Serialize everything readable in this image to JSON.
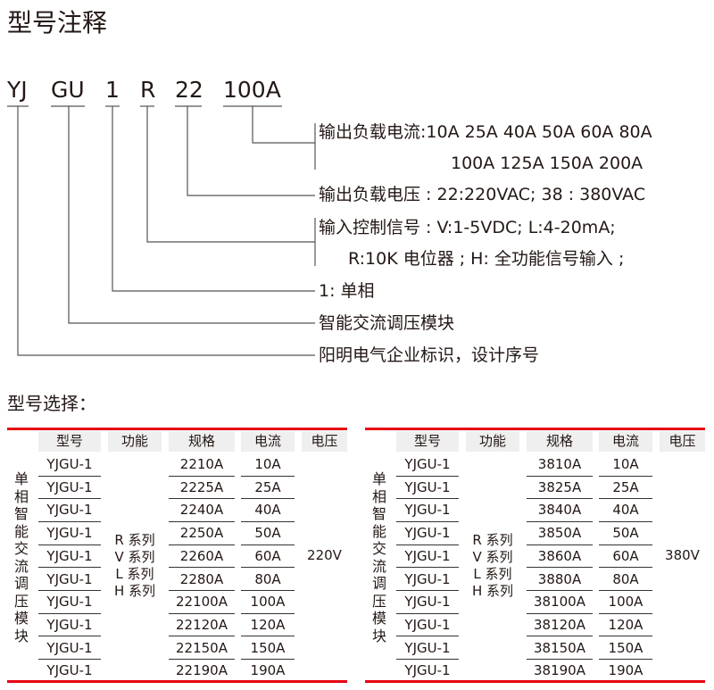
{
  "title": "型号注释",
  "codes": [
    "YJ",
    "GU",
    "1",
    "R",
    "22",
    "100A"
  ],
  "descriptions": {
    "current_line1": "输出负载电流:10A 25A 40A 50A 60A 80A",
    "current_line2": "100A 125A 150A 200A",
    "voltage": "输出负载电压 : 22:220VAC; 38 : 380VAC",
    "control_line1": "输入控制信号 : V:1-5VDC; L:4-20mA;",
    "control_line2": "R:10K 电位器 ; H: 全功能信号输入 ;",
    "phase": "1: 单相",
    "module": "智能交流调压模块",
    "brand": "阳明电气企业标识，设计序号"
  },
  "selection_title": "型号选择：",
  "accent_color": "#e60012",
  "tables": [
    {
      "headers": [
        "型号",
        "功能",
        "规格",
        "电流",
        "电压"
      ],
      "side_label": "单相智能交流调压模块",
      "functions": [
        "R 系列",
        "V 系列",
        "L 系列",
        "H 系列"
      ],
      "voltage": "220V",
      "rows": [
        [
          "YJGU-1",
          "2210A",
          "10A"
        ],
        [
          "YJGU-1",
          "2225A",
          "25A"
        ],
        [
          "YJGU-1",
          "2240A",
          "40A"
        ],
        [
          "YJGU-1",
          "2250A",
          "50A"
        ],
        [
          "YJGU-1",
          "2260A",
          "60A"
        ],
        [
          "YJGU-1",
          "2280A",
          "80A"
        ],
        [
          "YJGU-1",
          "22100A",
          "100A"
        ],
        [
          "YJGU-1",
          "22120A",
          "120A"
        ],
        [
          "YJGU-1",
          "22150A",
          "150A"
        ],
        [
          "YJGU-1",
          "22190A",
          "190A"
        ]
      ]
    },
    {
      "headers": [
        "型号",
        "功能",
        "规格",
        "电流",
        "电压"
      ],
      "side_label": "单相智能交流调压模块",
      "functions": [
        "R 系列",
        "V 系列",
        "L 系列",
        "H 系列"
      ],
      "voltage": "380V",
      "rows": [
        [
          "YJGU-1",
          "3810A",
          "10A"
        ],
        [
          "YJGU-1",
          "3825A",
          "25A"
        ],
        [
          "YJGU-1",
          "3840A",
          "40A"
        ],
        [
          "YJGU-1",
          "3850A",
          "50A"
        ],
        [
          "YJGU-1",
          "3860A",
          "60A"
        ],
        [
          "YJGU-1",
          "3880A",
          "80A"
        ],
        [
          "YJGU-1",
          "38100A",
          "100A"
        ],
        [
          "YJGU-1",
          "38120A",
          "120A"
        ],
        [
          "YJGU-1",
          "38150A",
          "150A"
        ],
        [
          "YJGU-1",
          "38190A",
          "190A"
        ]
      ]
    }
  ]
}
